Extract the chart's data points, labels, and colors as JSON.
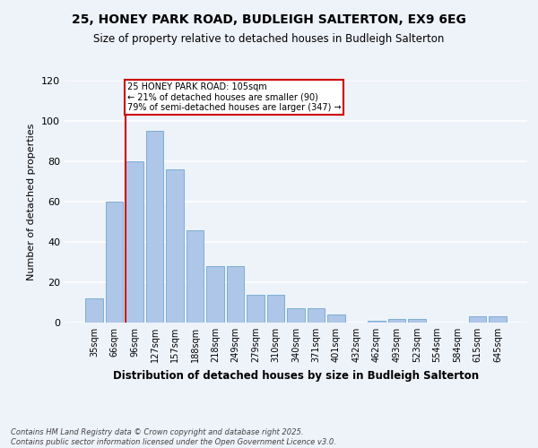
{
  "title_line1": "25, HONEY PARK ROAD, BUDLEIGH SALTERTON, EX9 6EG",
  "title_line2": "Size of property relative to detached houses in Budleigh Salterton",
  "xlabel": "Distribution of detached houses by size in Budleigh Salterton",
  "ylabel": "Number of detached properties",
  "categories": [
    "35sqm",
    "66sqm",
    "96sqm",
    "127sqm",
    "157sqm",
    "188sqm",
    "218sqm",
    "249sqm",
    "279sqm",
    "310sqm",
    "340sqm",
    "371sqm",
    "401sqm",
    "432sqm",
    "462sqm",
    "493sqm",
    "523sqm",
    "554sqm",
    "584sqm",
    "615sqm",
    "645sqm"
  ],
  "values": [
    12,
    60,
    80,
    95,
    76,
    46,
    28,
    28,
    14,
    14,
    7,
    7,
    4,
    0,
    1,
    2,
    2,
    0,
    0,
    3,
    3
  ],
  "bar_color": "#aec6e8",
  "bar_edge_color": "#7bafd4",
  "annotation_title": "25 HONEY PARK ROAD: 105sqm",
  "annotation_line1": "← 21% of detached houses are smaller (90)",
  "annotation_line2": "79% of semi-detached houses are larger (347) →",
  "annotation_box_color": "#ffffff",
  "annotation_box_edge_color": "#cc0000",
  "vline_color": "#cc0000",
  "ylim": [
    0,
    120
  ],
  "yticks": [
    0,
    20,
    40,
    60,
    80,
    100,
    120
  ],
  "footer_line1": "Contains HM Land Registry data © Crown copyright and database right 2025.",
  "footer_line2": "Contains public sector information licensed under the Open Government Licence v3.0.",
  "bg_color": "#eef2f9",
  "plot_bg_color": "#eef2f9",
  "grid_color": "#ffffff"
}
